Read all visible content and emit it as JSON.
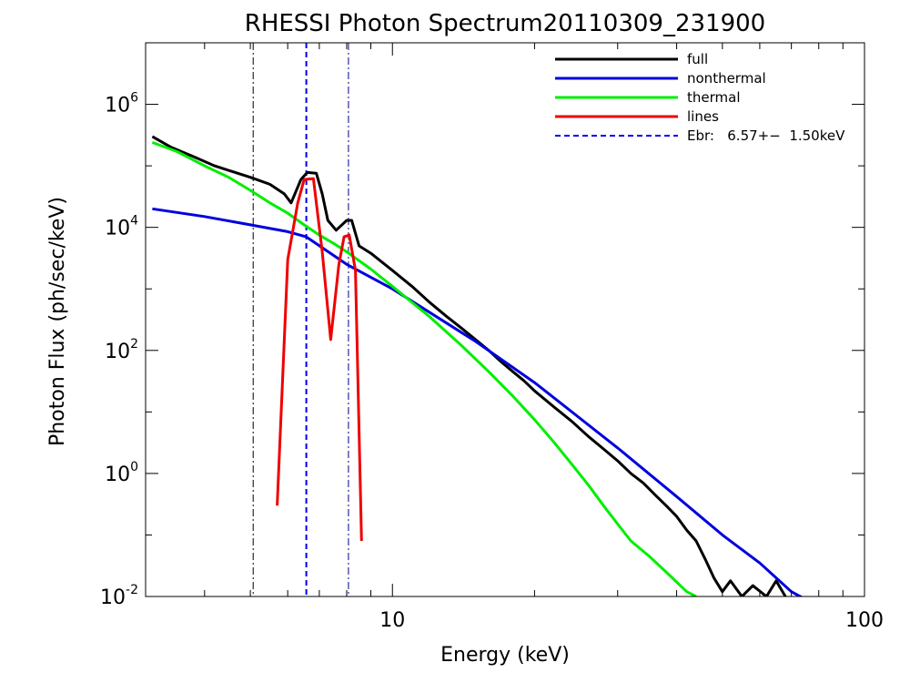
{
  "chart_data": {
    "type": "line",
    "title": "RHESSI Photon Spectrum20110309_231900",
    "xlabel": "Energy (keV)",
    "ylabel": "Photon Flux (ph/sec/keV)",
    "xscale": "log",
    "yscale": "log",
    "xlim": [
      3.0,
      100
    ],
    "ylim": [
      0.01,
      10000000
    ],
    "x_ticks": [
      {
        "value": 10,
        "label": "10"
      },
      {
        "value": 100,
        "label": "100"
      }
    ],
    "y_ticks": [
      {
        "value": 0.01,
        "base": "10",
        "exp": "-2"
      },
      {
        "value": 1,
        "base": "10",
        "exp": "0"
      },
      {
        "value": 100,
        "base": "10",
        "exp": "2"
      },
      {
        "value": 10000,
        "base": "10",
        "exp": "4"
      },
      {
        "value": 1000000,
        "base": "10",
        "exp": "6"
      }
    ],
    "legend_position": "top-right",
    "grid": false,
    "vertical_lines": [
      {
        "x": 5.07,
        "style": "dash-dot",
        "color": "#000000"
      },
      {
        "x": 6.57,
        "style": "dashed",
        "color": "#0000ee"
      },
      {
        "x": 8.07,
        "style": "dash-dot",
        "color": "#000088"
      }
    ],
    "series": [
      {
        "name": "full",
        "color": "#000000",
        "style": "solid",
        "points": [
          [
            3.1,
            300000
          ],
          [
            3.4,
            200000
          ],
          [
            3.8,
            140000
          ],
          [
            4.2,
            100000
          ],
          [
            4.6,
            80000
          ],
          [
            5.0,
            65000
          ],
          [
            5.5,
            50000
          ],
          [
            5.9,
            35000
          ],
          [
            6.1,
            25000
          ],
          [
            6.4,
            60000
          ],
          [
            6.6,
            78000
          ],
          [
            6.9,
            76000
          ],
          [
            7.1,
            35000
          ],
          [
            7.3,
            13000
          ],
          [
            7.6,
            9000
          ],
          [
            8.0,
            13000
          ],
          [
            8.2,
            13000
          ],
          [
            8.5,
            5000
          ],
          [
            9.0,
            3800
          ],
          [
            10,
            2000
          ],
          [
            11,
            1100
          ],
          [
            12,
            600
          ],
          [
            13,
            360
          ],
          [
            14,
            230
          ],
          [
            15,
            150
          ],
          [
            16,
            100
          ],
          [
            17,
            65
          ],
          [
            18,
            45
          ],
          [
            19,
            32
          ],
          [
            20,
            22
          ],
          [
            22,
            12
          ],
          [
            24,
            7
          ],
          [
            26,
            4
          ],
          [
            28,
            2.5
          ],
          [
            30,
            1.6
          ],
          [
            32,
            1.0
          ],
          [
            34,
            0.7
          ],
          [
            36,
            0.45
          ],
          [
            38,
            0.3
          ],
          [
            40,
            0.2
          ],
          [
            42,
            0.12
          ],
          [
            44,
            0.08
          ],
          [
            46,
            0.04
          ],
          [
            48,
            0.02
          ],
          [
            50,
            0.012
          ],
          [
            52,
            0.018
          ],
          [
            55,
            0.01
          ],
          [
            58,
            0.015
          ],
          [
            62,
            0.01
          ],
          [
            65,
            0.018
          ],
          [
            68,
            0.01
          ]
        ]
      },
      {
        "name": "nonthermal",
        "color": "#0000dd",
        "style": "solid",
        "points": [
          [
            3.1,
            20000
          ],
          [
            4,
            15000
          ],
          [
            5,
            11000
          ],
          [
            6,
            8500
          ],
          [
            6.57,
            7000
          ],
          [
            8,
            2500
          ],
          [
            10,
            1000
          ],
          [
            15,
            140
          ],
          [
            20,
            30
          ],
          [
            30,
            2.6
          ],
          [
            40,
            0.42
          ],
          [
            50,
            0.1
          ],
          [
            60,
            0.035
          ],
          [
            70,
            0.012
          ],
          [
            75,
            0.009
          ]
        ]
      },
      {
        "name": "thermal",
        "color": "#00ee00",
        "style": "solid",
        "points": [
          [
            3.1,
            240000
          ],
          [
            3.5,
            170000
          ],
          [
            4,
            100000
          ],
          [
            4.5,
            65000
          ],
          [
            5,
            40000
          ],
          [
            5.5,
            25000
          ],
          [
            6,
            17000
          ],
          [
            6.5,
            11000
          ],
          [
            7,
            7500
          ],
          [
            7.5,
            5500
          ],
          [
            8,
            4000
          ],
          [
            9,
            2100
          ],
          [
            10,
            1100
          ],
          [
            12,
            350
          ],
          [
            14,
            120
          ],
          [
            16,
            45
          ],
          [
            18,
            18
          ],
          [
            20,
            7.5
          ],
          [
            22,
            3.2
          ],
          [
            24,
            1.4
          ],
          [
            26,
            0.65
          ],
          [
            28,
            0.3
          ],
          [
            30,
            0.15
          ],
          [
            32,
            0.08
          ],
          [
            35,
            0.045
          ],
          [
            38,
            0.025
          ],
          [
            42,
            0.012
          ],
          [
            44,
            0.01
          ]
        ]
      },
      {
        "name": "lines",
        "color": "#ee0000",
        "style": "solid",
        "points": [
          [
            5.7,
            0.3
          ],
          [
            6.0,
            3000
          ],
          [
            6.3,
            25000
          ],
          [
            6.5,
            60000
          ],
          [
            6.8,
            62000
          ],
          [
            7.1,
            4000
          ],
          [
            7.4,
            150
          ],
          [
            7.7,
            2500
          ],
          [
            7.9,
            7000
          ],
          [
            8.1,
            7500
          ],
          [
            8.35,
            2000
          ],
          [
            8.6,
            0.08
          ]
        ]
      }
    ],
    "legend": [
      {
        "label": "full",
        "color": "#000000",
        "style": "solid"
      },
      {
        "label": "nonthermal",
        "color": "#0000dd",
        "style": "solid"
      },
      {
        "label": "thermal",
        "color": "#00ee00",
        "style": "solid"
      },
      {
        "label": "lines",
        "color": "#ee0000",
        "style": "solid"
      },
      {
        "label": "Ebr:   6.57+−  1.50keV",
        "color": "#0000ee",
        "style": "dashed"
      }
    ]
  }
}
